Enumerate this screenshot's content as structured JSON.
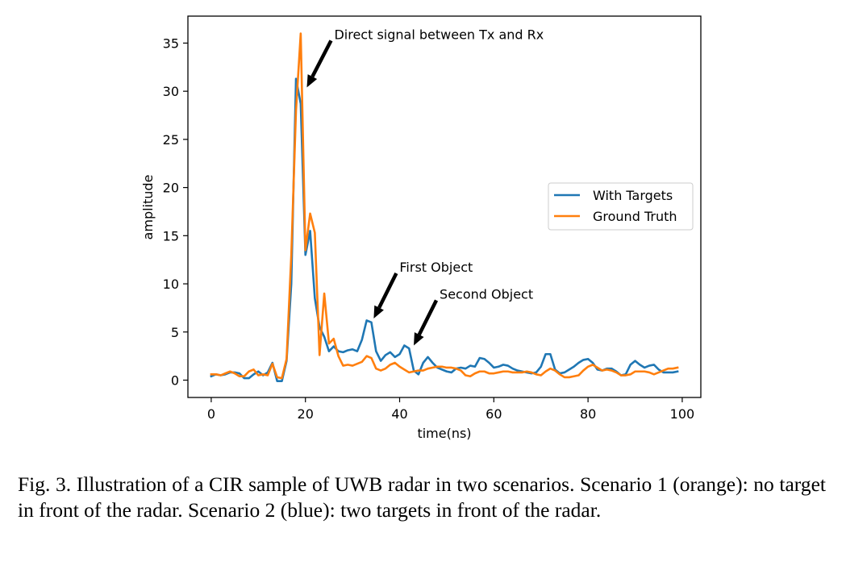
{
  "chart_data": {
    "type": "line",
    "title": "",
    "xlabel": "time(ns)",
    "ylabel": "amplitude",
    "xlim": [
      -4.95,
      103.95
    ],
    "ylim": [
      -1.8,
      37.8
    ],
    "xticks": [
      0,
      20,
      40,
      60,
      80,
      100
    ],
    "yticks": [
      0,
      5,
      10,
      15,
      20,
      25,
      30,
      35
    ],
    "grid": false,
    "legend_position": "center-right",
    "x": [
      0,
      1,
      2,
      3,
      4,
      5,
      6,
      7,
      8,
      9,
      10,
      11,
      12,
      13,
      14,
      15,
      16,
      17,
      18,
      19,
      20,
      21,
      22,
      23,
      24,
      25,
      26,
      27,
      28,
      29,
      30,
      31,
      32,
      33,
      34,
      35,
      36,
      37,
      38,
      39,
      40,
      41,
      42,
      43,
      44,
      45,
      46,
      47,
      48,
      49,
      50,
      51,
      52,
      53,
      54,
      55,
      56,
      57,
      58,
      59,
      60,
      61,
      62,
      63,
      64,
      65,
      66,
      67,
      68,
      69,
      70,
      71,
      72,
      73,
      74,
      75,
      76,
      77,
      78,
      79,
      80,
      81,
      82,
      83,
      84,
      85,
      86,
      87,
      88,
      89,
      90,
      91,
      92,
      93,
      94,
      95,
      96,
      97,
      98,
      99
    ],
    "series": [
      {
        "name": "With Targets",
        "color": "#1f77b4",
        "values": [
          0.4,
          0.6,
          0.5,
          0.6,
          0.8,
          0.8,
          0.7,
          0.2,
          0.2,
          0.6,
          0.9,
          0.5,
          0.8,
          1.8,
          -0.1,
          -0.1,
          2.0,
          10.0,
          31.3,
          28.7,
          13.0,
          15.5,
          8.5,
          5.5,
          4.5,
          3.0,
          3.5,
          3.0,
          2.9,
          3.1,
          3.2,
          3.0,
          4.2,
          6.2,
          6.0,
          3.0,
          2.0,
          2.6,
          2.9,
          2.4,
          2.7,
          3.6,
          3.3,
          1.0,
          0.6,
          1.8,
          2.4,
          1.8,
          1.3,
          1.1,
          0.9,
          0.8,
          1.2,
          1.3,
          1.2,
          1.5,
          1.4,
          2.3,
          2.2,
          1.8,
          1.3,
          1.4,
          1.6,
          1.5,
          1.2,
          1.0,
          0.9,
          0.8,
          0.7,
          0.8,
          1.4,
          2.7,
          2.7,
          1.1,
          0.7,
          0.8,
          1.1,
          1.4,
          1.8,
          2.1,
          2.2,
          1.8,
          1.1,
          1.0,
          1.2,
          1.2,
          0.9,
          0.5,
          0.6,
          1.6,
          2.0,
          1.6,
          1.3,
          1.5,
          1.6,
          1.1,
          0.8,
          0.8,
          0.8,
          0.9
        ]
      },
      {
        "name": "Ground Truth",
        "color": "#ff7f0e",
        "values": [
          0.6,
          0.6,
          0.5,
          0.7,
          0.9,
          0.7,
          0.4,
          0.4,
          0.9,
          1.1,
          0.5,
          0.6,
          0.5,
          1.7,
          0.3,
          0.2,
          2.2,
          13.0,
          28.0,
          36.0,
          13.5,
          17.3,
          15.3,
          2.6,
          9.0,
          3.8,
          4.3,
          2.5,
          1.5,
          1.6,
          1.5,
          1.7,
          1.9,
          2.5,
          2.3,
          1.2,
          1.0,
          1.2,
          1.6,
          1.8,
          1.4,
          1.1,
          0.8,
          0.9,
          1.0,
          1.0,
          1.2,
          1.3,
          1.4,
          1.4,
          1.3,
          1.3,
          1.2,
          1.0,
          0.5,
          0.4,
          0.7,
          0.9,
          0.9,
          0.7,
          0.7,
          0.8,
          0.9,
          0.9,
          0.8,
          0.8,
          0.8,
          0.9,
          0.8,
          0.6,
          0.5,
          0.9,
          1.2,
          1.0,
          0.6,
          0.3,
          0.3,
          0.4,
          0.5,
          1.0,
          1.4,
          1.6,
          1.3,
          1.0,
          1.1,
          1.0,
          0.8,
          0.5,
          0.5,
          0.6,
          0.9,
          0.9,
          0.9,
          0.8,
          0.6,
          0.8,
          1.0,
          1.2,
          1.2,
          1.3
        ]
      }
    ],
    "annotations": [
      {
        "text": "Direct signal between Tx and Rx",
        "x": 20.3,
        "y": 30.4
      },
      {
        "text": "First Object",
        "x": 34.5,
        "y": 6.4
      },
      {
        "text": "Second Object",
        "x": 43.0,
        "y": 3.6
      }
    ]
  },
  "caption": "Fig. 3.   Illustration of a CIR sample of UWB radar in two scenarios. Scenario 1 (orange): no target in front of the radar. Scenario 2 (blue): two targets in front of the radar."
}
